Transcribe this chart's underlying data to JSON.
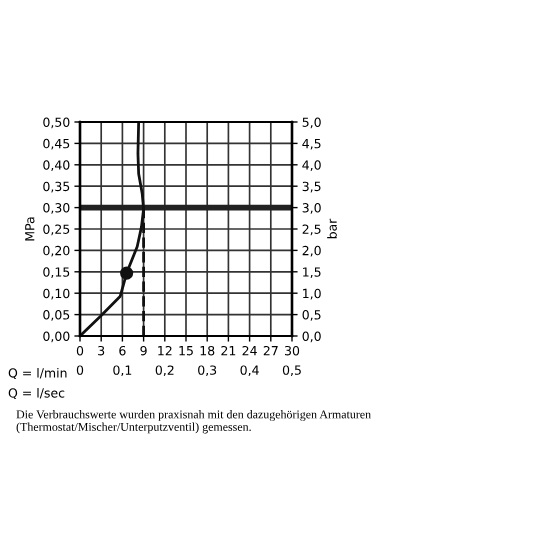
{
  "chart_data": {
    "type": "line",
    "xlabel": "Q = l/min",
    "x2label": "Q = l/sec",
    "ylabel": "MPa",
    "y2label": "bar",
    "xlim": [
      0,
      30
    ],
    "xticks": [
      0,
      3,
      6,
      9,
      12,
      15,
      18,
      21,
      24,
      27,
      30
    ],
    "x2lim": [
      0,
      0.5
    ],
    "x2ticks": [
      0,
      {
        "value": 0.1,
        "label": "0,1"
      },
      {
        "value": 0.2,
        "label": "0,2"
      },
      {
        "value": 0.3,
        "label": "0,3"
      },
      {
        "value": 0.4,
        "label": "0,4"
      },
      {
        "value": 0.5,
        "label": "0,5"
      }
    ],
    "ylim": [
      0,
      0.5
    ],
    "yticks": [
      {
        "value": 0,
        "label": "0,00"
      },
      {
        "value": 0.05,
        "label": "0,05"
      },
      {
        "value": 0.1,
        "label": "0,10"
      },
      {
        "value": 0.15,
        "label": "0,15"
      },
      {
        "value": 0.2,
        "label": "0,20"
      },
      {
        "value": 0.25,
        "label": "0,25"
      },
      {
        "value": 0.3,
        "label": "0,30"
      },
      {
        "value": 0.35,
        "label": "0,35"
      },
      {
        "value": 0.4,
        "label": "0,40"
      },
      {
        "value": 0.45,
        "label": "0,45"
      },
      {
        "value": 0.5,
        "label": "0,50"
      }
    ],
    "y2lim": [
      0,
      5
    ],
    "y2ticks": [
      {
        "value": 0,
        "label": "0,0"
      },
      {
        "value": 0.5,
        "label": "0,5"
      },
      {
        "value": 1,
        "label": "1,0"
      },
      {
        "value": 1.5,
        "label": "1,5"
      },
      {
        "value": 2,
        "label": "2,0"
      },
      {
        "value": 2.5,
        "label": "2,5"
      },
      {
        "value": 3,
        "label": "3,0"
      },
      {
        "value": 3.5,
        "label": "3,5"
      },
      {
        "value": 4,
        "label": "4,0"
      },
      {
        "value": 4.5,
        "label": "4,5"
      },
      {
        "value": 5,
        "label": "5,0"
      }
    ],
    "grid": true,
    "series": [
      {
        "color": "#111111",
        "line_style": "solid",
        "x": [
          0,
          2.9,
          5.7,
          6.6,
          8.1,
          8.7,
          9.0,
          8.8,
          8.3,
          8.2,
          8.3
        ],
        "values": [
          0,
          0.046,
          0.093,
          0.147,
          0.209,
          0.255,
          0.297,
          0.333,
          0.379,
          0.426,
          0.5
        ]
      },
      {
        "color": "#111111",
        "line_style": "dashed",
        "x": [
          9,
          9
        ],
        "values": [
          0,
          0.3
        ]
      },
      {
        "type": "scatter",
        "color": "#111111",
        "marker": "circle",
        "x": [
          6.6
        ],
        "values": [
          0.147
        ]
      }
    ],
    "ref_lines": [
      {
        "axis": "y",
        "value": 0.3,
        "color": "#222222"
      }
    ],
    "annotations": [
      "Die Verbrauchswerte wurden praxisnah mit den dazugehörigen Armaturen (Thermostat/Mischer/Unterputzventil) gemessen."
    ]
  }
}
